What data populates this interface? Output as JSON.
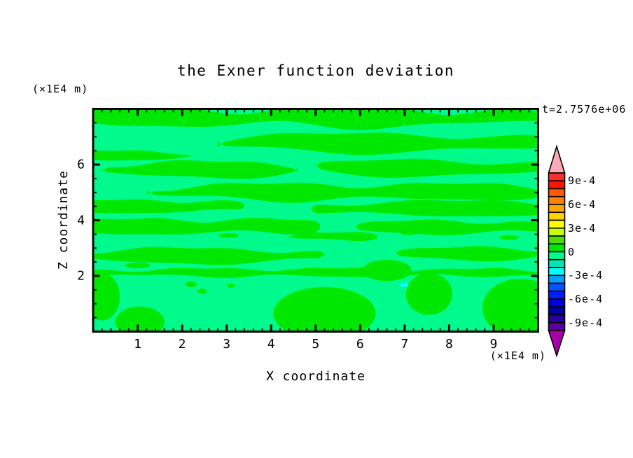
{
  "page": {
    "background": "#ffffff"
  },
  "chart_data": {
    "type": "heatmap",
    "variant": "filled-contour-plot",
    "title": "the Exner function deviation",
    "time_annotation": "t=2.7576e+06",
    "xlabel": "X coordinate",
    "ylabel": "Z coordinate",
    "x_unit_label": "(×1E4 m)",
    "y_unit_label": "(×1E4 m)",
    "x_range": [
      0,
      10
    ],
    "z_range": [
      0,
      8
    ],
    "x_major_ticks": [
      1,
      2,
      3,
      4,
      5,
      6,
      7,
      8,
      9
    ],
    "x_minor_step": 0.2,
    "z_major_ticks": [
      2,
      4,
      6
    ],
    "z_minor_step": 0.5,
    "grid": false,
    "legend_position": "right-colorbar",
    "colorbar": {
      "labels": [
        "9e-4",
        "6e-4",
        "3e-4",
        "0",
        "-3e-4",
        "-6e-4",
        "-9e-4"
      ],
      "label_values": [
        0.0009,
        0.0006,
        0.0003,
        0,
        -0.0003,
        -0.0006,
        -0.0009
      ],
      "segment_size": 0.0001,
      "range": [
        -0.001,
        0.001
      ],
      "colors_top_to_bottom": [
        "#ff2e2e",
        "#ff1400",
        "#ff5a00",
        "#ff8200",
        "#ffa500",
        "#ffd200",
        "#ffff00",
        "#c8ff00",
        "#50dc00",
        "#00e800",
        "#00fa8c",
        "#00e6b4",
        "#00ffff",
        "#00a0ff",
        "#0055ff",
        "#001eff",
        "#0000dc",
        "#0000a0",
        "#2800a0",
        "#5a00a0"
      ],
      "over_arrow_color": "#ffaab4",
      "under_arrow_color": "#aa00aa"
    },
    "field_colors": {
      "positive_0_to_1e-4": "#00e800",
      "negative_-1e-4_to_0": "#00fa8c",
      "spot_below_-1e-4": "#00ffff"
    },
    "field_shapes": {
      "note": "approximate digitization of contour regions; coordinates in axis units (x 0-10, z 0-8)",
      "green_bands": [
        [
          0,
          10,
          7.7,
          0.3,
          0.12,
          1.3,
          0.5
        ],
        [
          2.8,
          10,
          6.78,
          0.3,
          0.09,
          1.1,
          2.0
        ],
        [
          0,
          2.2,
          6.33,
          0.15,
          0.05,
          2.0,
          1.0
        ],
        [
          0.2,
          4.6,
          5.82,
          0.26,
          0.07,
          1.5,
          4.0
        ],
        [
          5.0,
          10,
          5.88,
          0.26,
          0.08,
          1.2,
          0.3
        ],
        [
          1.2,
          10,
          5.02,
          0.27,
          0.09,
          1.4,
          2.6
        ],
        [
          0,
          3.4,
          4.5,
          0.22,
          0.06,
          1.8,
          1.2
        ],
        [
          4.9,
          10,
          4.42,
          0.25,
          0.07,
          1.3,
          3.4
        ],
        [
          0,
          5.1,
          3.78,
          0.26,
          0.08,
          1.6,
          0.8
        ],
        [
          5.9,
          10,
          3.75,
          0.22,
          0.06,
          1.7,
          2.2
        ],
        [
          4.4,
          6.4,
          3.42,
          0.12,
          0.04,
          2.5,
          0.0
        ],
        [
          0,
          5.2,
          2.72,
          0.25,
          0.07,
          1.5,
          5.0
        ],
        [
          6.8,
          10,
          2.8,
          0.2,
          0.06,
          1.6,
          1.1
        ],
        [
          0,
          10,
          2.12,
          0.13,
          0.05,
          2.0,
          3.0
        ]
      ],
      "green_blobs": [
        [
          1.05,
          0.35,
          0.55,
          0.55
        ],
        [
          5.2,
          0.65,
          1.15,
          0.95
        ],
        [
          7.55,
          1.35,
          0.52,
          0.75
        ],
        [
          9.6,
          0.85,
          0.85,
          1.05
        ],
        [
          0.2,
          1.25,
          0.4,
          0.85
        ],
        [
          6.6,
          2.2,
          0.55,
          0.38
        ],
        [
          2.2,
          1.7,
          0.13,
          0.1
        ],
        [
          2.45,
          1.45,
          0.1,
          0.09
        ],
        [
          3.1,
          1.65,
          0.09,
          0.07
        ],
        [
          1.0,
          2.38,
          0.28,
          0.1
        ],
        [
          3.05,
          3.45,
          0.22,
          0.08
        ],
        [
          7.1,
          3.55,
          0.2,
          0.08
        ],
        [
          9.35,
          3.38,
          0.22,
          0.08
        ]
      ],
      "cyan_spots": [
        [
          6.99,
          1.68,
          0.1,
          0.08
        ]
      ]
    }
  }
}
